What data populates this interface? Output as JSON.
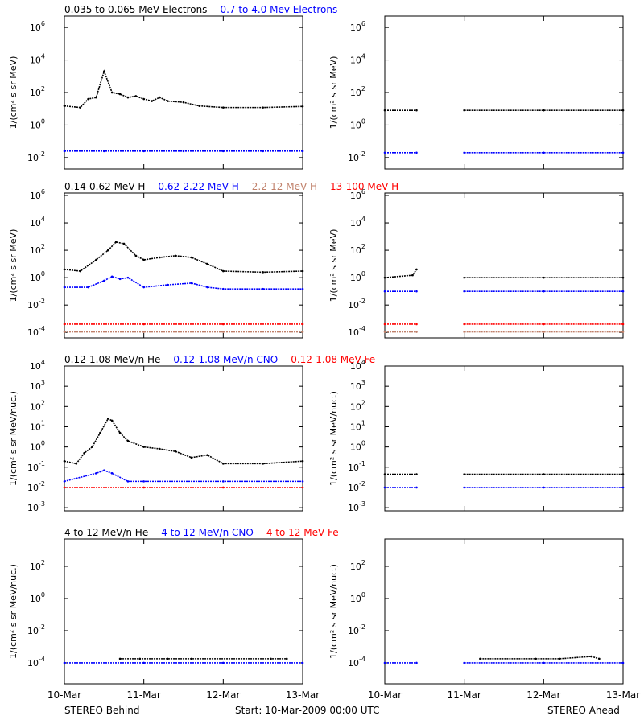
{
  "x_tick_labels": [
    "10-Mar",
    "11-Mar",
    "12-Mar",
    "13-Mar"
  ],
  "footer": {
    "left": "STEREO Behind",
    "center": "Start: 10-Mar-2009 00:00 UTC",
    "right": "STEREO Ahead"
  },
  "colors": {
    "black": "#000000",
    "blue": "#0000ff",
    "tan": "#c0806a",
    "red": "#ff0000"
  },
  "chart_data": [
    {
      "type": "scatter",
      "panel": "row1-left",
      "ylabel": "1/(cm² s sr MeV)",
      "yscale": "log",
      "ylim": [
        0.002,
        5000000
      ],
      "y_tick_exponents": [
        -2,
        0,
        2,
        4,
        6
      ],
      "x_range_days": [
        0,
        3
      ],
      "legend": [
        {
          "text": "0.035 to 0.065 MeV Electrons",
          "color": "#000000"
        },
        {
          "text": "0.7 to 4.0 Mev Electrons",
          "color": "#0000ff"
        }
      ],
      "series": [
        {
          "color": "#000000",
          "x": [
            0,
            0.2,
            0.3,
            0.4,
            0.5,
            0.6,
            0.7,
            0.8,
            0.9,
            1.0,
            1.1,
            1.2,
            1.3,
            1.5,
            1.7,
            2.0,
            2.5,
            3.0
          ],
          "y": [
            15,
            12,
            40,
            50,
            2000,
            100,
            80,
            50,
            60,
            40,
            30,
            50,
            30,
            25,
            15,
            12,
            12,
            14
          ]
        },
        {
          "color": "#0000ff",
          "x": [
            0,
            0.5,
            1.0,
            1.5,
            2.0,
            2.5,
            3.0
          ],
          "y": [
            0.025,
            0.025,
            0.025,
            0.025,
            0.025,
            0.025,
            0.025
          ]
        }
      ]
    },
    {
      "type": "scatter",
      "panel": "row1-right",
      "ylabel": "1/(cm² s sr MeV)",
      "yscale": "log",
      "ylim": [
        0.002,
        5000000
      ],
      "y_tick_exponents": [
        -2,
        0,
        2,
        4,
        6
      ],
      "x_range_days": [
        0,
        3
      ],
      "series": [
        {
          "color": "#000000",
          "x": [
            0,
            0.4,
            0.6,
            1.0,
            2.0,
            3.0
          ],
          "y": [
            8,
            8,
            null,
            8,
            8,
            8
          ]
        },
        {
          "color": "#0000ff",
          "x": [
            0,
            0.4,
            0.6,
            1.0,
            2.0,
            3.0
          ],
          "y": [
            0.02,
            0.02,
            null,
            0.02,
            0.02,
            0.02
          ]
        }
      ]
    },
    {
      "type": "scatter",
      "panel": "row2-left",
      "ylabel": "1/(cm² s sr MeV)",
      "yscale": "log",
      "ylim": [
        4e-05,
        1500000
      ],
      "y_tick_exponents": [
        -4,
        -2,
        0,
        2,
        4,
        6
      ],
      "x_range_days": [
        0,
        3
      ],
      "legend": [
        {
          "text": "0.14-0.62 MeV H",
          "color": "#000000"
        },
        {
          "text": "0.62-2.22 MeV H",
          "color": "#0000ff"
        },
        {
          "text": "2.2-12 MeV H",
          "color": "#c0806a"
        },
        {
          "text": "13-100 MeV H",
          "color": "#ff0000"
        }
      ],
      "series": [
        {
          "color": "#000000",
          "x": [
            0,
            0.2,
            0.4,
            0.55,
            0.65,
            0.75,
            0.9,
            1.0,
            1.2,
            1.4,
            1.6,
            1.8,
            2.0,
            2.5,
            3.0
          ],
          "y": [
            4,
            3,
            20,
            100,
            400,
            300,
            40,
            20,
            30,
            40,
            30,
            10,
            3,
            2.5,
            3
          ]
        },
        {
          "color": "#0000ff",
          "x": [
            0,
            0.3,
            0.5,
            0.6,
            0.7,
            0.8,
            1.0,
            1.3,
            1.6,
            1.8,
            2.0,
            2.5,
            3.0
          ],
          "y": [
            0.2,
            0.2,
            0.6,
            1.2,
            0.8,
            1.0,
            0.2,
            0.3,
            0.4,
            0.2,
            0.15,
            0.15,
            0.15
          ]
        },
        {
          "color": "#ff0000",
          "x": [
            0,
            1.0,
            2.0,
            3.0
          ],
          "y": [
            0.0004,
            0.0004,
            0.0004,
            0.0004
          ]
        },
        {
          "color": "#c0806a",
          "x": [
            0,
            1.0,
            2.0,
            3.0
          ],
          "y": [
            0.00011,
            0.00011,
            0.00011,
            0.00011
          ]
        }
      ]
    },
    {
      "type": "scatter",
      "panel": "row2-right",
      "ylabel": "1/(cm² s sr MeV)",
      "yscale": "log",
      "ylim": [
        4e-05,
        1500000
      ],
      "y_tick_exponents": [
        -4,
        -2,
        0,
        2,
        4,
        6
      ],
      "x_range_days": [
        0,
        3
      ],
      "series": [
        {
          "color": "#000000",
          "x": [
            0,
            0.35,
            0.4,
            0.6,
            1.0,
            2.0,
            3.0
          ],
          "y": [
            1,
            1.5,
            4,
            null,
            1,
            1,
            1
          ]
        },
        {
          "color": "#0000ff",
          "x": [
            0,
            0.4,
            0.6,
            1.0,
            2.0,
            3.0
          ],
          "y": [
            0.1,
            0.1,
            null,
            0.1,
            0.1,
            0.1
          ]
        },
        {
          "color": "#ff0000",
          "x": [
            0,
            0.4,
            0.6,
            1.0,
            2.0,
            3.0
          ],
          "y": [
            0.0004,
            0.0004,
            null,
            0.0004,
            0.0004,
            0.0004
          ]
        },
        {
          "color": "#c0806a",
          "x": [
            0,
            0.4,
            0.6,
            1.0,
            2.0,
            3.0
          ],
          "y": [
            0.00011,
            0.00011,
            null,
            0.00011,
            0.00011,
            0.00011
          ]
        }
      ]
    },
    {
      "type": "scatter",
      "panel": "row3-left",
      "ylabel": "1/(cm² s sr MeV/nuc.)",
      "yscale": "log",
      "ylim": [
        0.0007,
        10000
      ],
      "y_tick_exponents": [
        -3,
        -2,
        -1,
        0,
        1,
        2,
        3,
        4
      ],
      "x_range_days": [
        0,
        3
      ],
      "legend": [
        {
          "text": "0.12-1.08 MeV/n He",
          "color": "#000000"
        },
        {
          "text": "0.12-1.08 MeV/n CNO",
          "color": "#0000ff"
        },
        {
          "text": "0.12-1.08 MeV Fe",
          "color": "#ff0000"
        }
      ],
      "series": [
        {
          "color": "#000000",
          "x": [
            0,
            0.15,
            0.25,
            0.35,
            0.45,
            0.55,
            0.6,
            0.7,
            0.8,
            1.0,
            1.2,
            1.4,
            1.6,
            1.8,
            2.0,
            2.5,
            3.0
          ],
          "y": [
            0.2,
            0.15,
            0.5,
            1,
            5,
            25,
            20,
            5,
            2,
            1,
            0.8,
            0.6,
            0.3,
            0.4,
            0.15,
            0.15,
            0.2
          ]
        },
        {
          "color": "#0000ff",
          "x": [
            0,
            0.4,
            0.5,
            0.6,
            0.8,
            1.0,
            2.0,
            3.0
          ],
          "y": [
            0.02,
            0.05,
            0.07,
            0.05,
            0.02,
            0.02,
            0.02,
            0.02
          ]
        },
        {
          "color": "#ff0000",
          "x": [
            0,
            1.0,
            2.0,
            3.0
          ],
          "y": [
            0.01,
            0.01,
            0.01,
            0.01
          ]
        }
      ]
    },
    {
      "type": "scatter",
      "panel": "row3-right",
      "ylabel": "1/(cm² s sr MeV/nuc.)",
      "yscale": "log",
      "ylim": [
        0.0007,
        10000
      ],
      "y_tick_exponents": [
        -3,
        -2,
        -1,
        0,
        1,
        2,
        3,
        4
      ],
      "x_range_days": [
        0,
        3
      ],
      "series": [
        {
          "color": "#000000",
          "x": [
            0,
            0.4,
            0.6,
            1.0,
            2.0,
            3.0
          ],
          "y": [
            0.045,
            0.045,
            null,
            0.045,
            0.045,
            0.045
          ]
        },
        {
          "color": "#0000ff",
          "x": [
            0,
            0.4,
            0.6,
            1.0,
            2.0,
            3.0
          ],
          "y": [
            0.01,
            0.01,
            null,
            0.01,
            0.01,
            0.01
          ]
        }
      ]
    },
    {
      "type": "scatter",
      "panel": "row4-left",
      "ylabel": "1/(cm² s sr MeV/nuc.)",
      "yscale": "log",
      "ylim": [
        5e-06,
        5000
      ],
      "y_tick_exponents": [
        -4,
        -2,
        0,
        2
      ],
      "x_range_days": [
        0,
        3
      ],
      "legend": [
        {
          "text": "4 to 12 MeV/n He",
          "color": "#000000"
        },
        {
          "text": "4 to 12 MeV/n CNO",
          "color": "#0000ff"
        },
        {
          "text": "4 to 12 MeV Fe",
          "color": "#ff0000"
        }
      ],
      "series": [
        {
          "color": "#0000ff",
          "x": [
            0,
            1.0,
            2.0,
            3.0
          ],
          "y": [
            0.0001,
            0.0001,
            0.0001,
            0.0001
          ]
        },
        {
          "color": "#000000",
          "x": [
            0.7,
            0.95,
            1.3,
            1.6,
            2.6,
            2.8
          ],
          "y": [
            0.00018,
            0.00018,
            0.00018,
            0.00018,
            0.00018,
            0.00018
          ]
        }
      ]
    },
    {
      "type": "scatter",
      "panel": "row4-right",
      "ylabel": "1/(cm² s sr MeV/nuc.)",
      "yscale": "log",
      "ylim": [
        5e-06,
        5000
      ],
      "y_tick_exponents": [
        -4,
        -2,
        0,
        2
      ],
      "x_range_days": [
        0,
        3
      ],
      "series": [
        {
          "color": "#0000ff",
          "x": [
            0,
            0.4,
            0.6,
            1.0,
            2.0,
            3.0
          ],
          "y": [
            0.0001,
            0.0001,
            null,
            0.0001,
            0.0001,
            0.0001
          ]
        },
        {
          "color": "#000000",
          "x": [
            1.2,
            1.9,
            2.2,
            2.6,
            2.7
          ],
          "y": [
            0.00018,
            0.00018,
            0.00018,
            0.00025,
            0.00018
          ]
        }
      ]
    }
  ]
}
